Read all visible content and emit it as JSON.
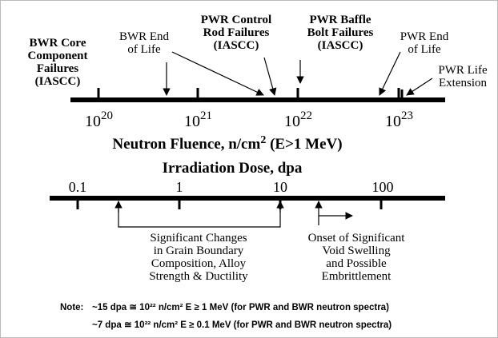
{
  "fluence_axis": {
    "ticks": [
      {
        "base": "10",
        "exponent": "20"
      },
      {
        "base": "10",
        "exponent": "21"
      },
      {
        "base": "10",
        "exponent": "22"
      },
      {
        "base": "10",
        "exponent": "23"
      }
    ],
    "title": {
      "main": "Neutron Fluence, n/cm",
      "exponent": "2",
      "rest": " (E>1 MeV)"
    },
    "annotations": [
      {
        "lines": [
          "BWR Core",
          "Component",
          "Failures",
          "(IASCC)"
        ]
      },
      {
        "lines": [
          "BWR End",
          "of Life"
        ]
      },
      {
        "lines": [
          "PWR Control",
          "Rod Failures",
          "(IASCC)"
        ]
      },
      {
        "lines": [
          "PWR  Baffle",
          "Bolt Failures",
          "(IASCC)"
        ]
      },
      {
        "lines": [
          "PWR End",
          "of Life"
        ]
      },
      {
        "lines": [
          "PWR Life",
          "Extension"
        ]
      }
    ]
  },
  "dose_axis": {
    "title": "Irradiation Dose, dpa",
    "ticks": [
      "0.1",
      "1",
      "10",
      "100"
    ],
    "annotations": [
      {
        "lines": [
          "Significant Changes",
          "in Grain Boundary",
          "Composition, Alloy",
          "Strength & Ductility"
        ]
      },
      {
        "lines": [
          "Onset of Significant",
          "Void Swelling",
          "and Possible",
          "Embrittlement"
        ]
      }
    ]
  },
  "note": {
    "label": "Note:",
    "lines": [
      "~15 dpa ≅ 10²² n/cm² E ≥ 1 MeV (for PWR and BWR neutron spectra)",
      "~7 dpa ≅ 10²² n/cm² E ≥ 0.1 MeV (for PWR and BWR neutron spectra)"
    ]
  }
}
